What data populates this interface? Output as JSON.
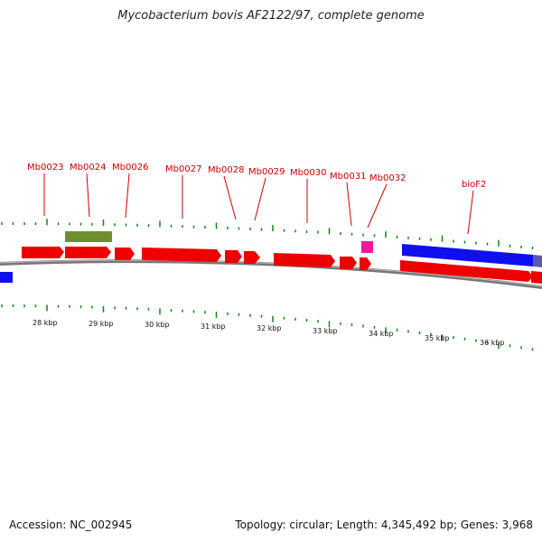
{
  "title": "Mycobacterium bovis AF2122/97, complete genome",
  "footer": {
    "accession": "Accession: NC_002945",
    "summary": "Topology: circular; Length: 4,345,492 bp; Genes: 3,968"
  },
  "colors": {
    "label": "#cc0000",
    "gene_forward": "#ee0000",
    "gene_blue": "#1010ee",
    "gene_green": "#6f8f2f",
    "gene_pink": "#ee1a9a",
    "tick": "#118811",
    "backbone": "#888888"
  },
  "kbp_labels": [
    "28 kbp",
    "29 kbp",
    "30 kbp",
    "31 kbp",
    "32 kbp",
    "33 kbp",
    "34 kbp",
    "35 kbp",
    "36 kbp"
  ],
  "gene_labels": [
    "Mb0023",
    "Mb0024",
    "Mb0026",
    "Mb0027",
    "Mb0028",
    "Mb0029",
    "Mb0030",
    "Mb0031",
    "Mb0032",
    "bioF2"
  ]
}
